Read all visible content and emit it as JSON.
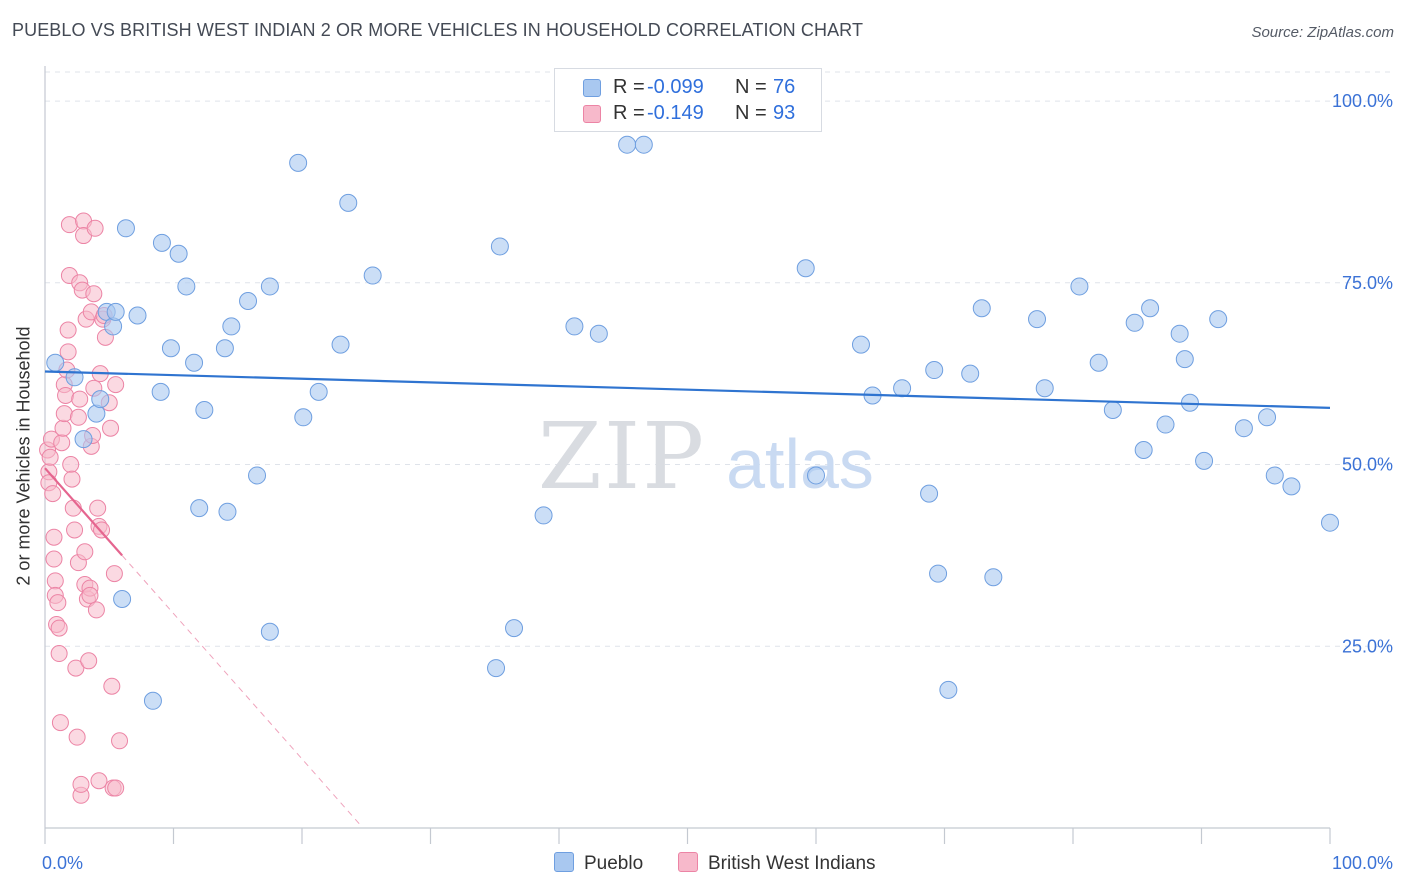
{
  "header": {
    "title": "PUEBLO VS BRITISH WEST INDIAN 2 OR MORE VEHICLES IN HOUSEHOLD CORRELATION CHART",
    "source": "Source: ZipAtlas.com"
  },
  "legend": {
    "series": [
      {
        "r_label": "R =",
        "r_value": "-0.099",
        "n_label": "N =",
        "n_value": "76"
      },
      {
        "r_label": "R =",
        "r_value": "-0.149",
        "n_label": "N =",
        "n_value": "93"
      }
    ]
  },
  "bottom_legend": {
    "pueblo": "Pueblo",
    "bwi": "British West Indians"
  },
  "watermark": {
    "zip": "ZIP",
    "atlas": "atlas"
  },
  "colors": {
    "pueblo_fill": "#a9c8f0",
    "pueblo_stroke": "#6f9fe0",
    "pueblo_line": "#2f74d0",
    "bwi_fill": "#f7b9cb",
    "bwi_stroke": "#ec84a5",
    "bwi_line": "#e5658f",
    "axis_tick_label": "#3b72d6",
    "grid": "#dfe3ea"
  },
  "chart_data": {
    "type": "scatter",
    "title": "PUEBLO VS BRITISH WEST INDIAN 2 OR MORE VEHICLES IN HOUSEHOLD CORRELATION CHART",
    "xlabel": "",
    "ylabel": "2 or more Vehicles in Household",
    "xlim": [
      0,
      100
    ],
    "ylim": [
      0,
      104
    ],
    "x_tick_labels": [
      "0.0%",
      "100.0%"
    ],
    "y_ticks": [
      25,
      50,
      75,
      100
    ],
    "y_tick_labels": [
      "25.0%",
      "50.0%",
      "75.0%",
      "100.0%"
    ],
    "grid": true,
    "series": [
      {
        "name": "Pueblo",
        "points": [
          [
            0.8,
            64
          ],
          [
            2.3,
            62
          ],
          [
            3.0,
            53.5
          ],
          [
            4.0,
            57
          ],
          [
            4.3,
            59
          ],
          [
            4.8,
            71
          ],
          [
            5.3,
            69
          ],
          [
            5.5,
            71
          ],
          [
            6.0,
            31.5
          ],
          [
            6.3,
            82.5
          ],
          [
            7.2,
            70.5
          ],
          [
            8.4,
            17.5
          ],
          [
            9.0,
            60
          ],
          [
            9.1,
            80.5
          ],
          [
            9.8,
            66
          ],
          [
            10.4,
            79
          ],
          [
            11.0,
            74.5
          ],
          [
            11.6,
            64
          ],
          [
            12.0,
            44
          ],
          [
            12.4,
            57.5
          ],
          [
            14.0,
            66
          ],
          [
            14.2,
            43.5
          ],
          [
            14.5,
            69
          ],
          [
            15.8,
            72.5
          ],
          [
            16.5,
            48.5
          ],
          [
            17.5,
            27
          ],
          [
            17.5,
            74.5
          ],
          [
            19.7,
            91.5
          ],
          [
            20.1,
            56.5
          ],
          [
            21.3,
            60
          ],
          [
            23.0,
            66.5
          ],
          [
            23.6,
            86
          ],
          [
            25.5,
            76
          ],
          [
            35.1,
            22
          ],
          [
            35.4,
            80
          ],
          [
            36.5,
            27.5
          ],
          [
            38.8,
            43
          ],
          [
            41.2,
            69
          ],
          [
            43.1,
            68
          ],
          [
            45.3,
            94
          ],
          [
            46.6,
            94
          ],
          [
            59.2,
            77
          ],
          [
            60.0,
            48.5
          ],
          [
            63.5,
            66.5
          ],
          [
            64.4,
            59.5
          ],
          [
            66.7,
            60.5
          ],
          [
            68.8,
            46
          ],
          [
            69.2,
            63
          ],
          [
            69.5,
            35
          ],
          [
            70.3,
            19
          ],
          [
            72.0,
            62.5
          ],
          [
            72.9,
            71.5
          ],
          [
            73.8,
            34.5
          ],
          [
            77.2,
            70
          ],
          [
            77.8,
            60.5
          ],
          [
            80.5,
            74.5
          ],
          [
            82.0,
            64
          ],
          [
            83.1,
            57.5
          ],
          [
            84.8,
            69.5
          ],
          [
            85.5,
            52
          ],
          [
            86.0,
            71.5
          ],
          [
            87.2,
            55.5
          ],
          [
            88.3,
            68
          ],
          [
            88.7,
            64.5
          ],
          [
            89.1,
            58.5
          ],
          [
            90.2,
            50.5
          ],
          [
            91.3,
            70
          ],
          [
            93.3,
            55
          ],
          [
            95.1,
            56.5
          ],
          [
            95.7,
            48.5
          ],
          [
            97.0,
            47
          ],
          [
            100,
            42
          ]
        ]
      },
      {
        "name": "British West Indians",
        "points": [
          [
            0.2,
            52
          ],
          [
            0.3,
            49
          ],
          [
            0.3,
            47.5
          ],
          [
            0.4,
            51
          ],
          [
            0.5,
            53.5
          ],
          [
            0.6,
            46
          ],
          [
            0.7,
            40
          ],
          [
            0.7,
            37
          ],
          [
            0.8,
            34
          ],
          [
            0.8,
            32
          ],
          [
            0.9,
            28
          ],
          [
            1.0,
            31
          ],
          [
            1.1,
            24
          ],
          [
            1.1,
            27.5
          ],
          [
            1.2,
            14.5
          ],
          [
            1.3,
            53
          ],
          [
            1.4,
            55
          ],
          [
            1.5,
            57
          ],
          [
            1.5,
            61
          ],
          [
            1.6,
            59.5
          ],
          [
            1.7,
            63
          ],
          [
            1.8,
            65.5
          ],
          [
            1.8,
            68.5
          ],
          [
            1.9,
            76
          ],
          [
            1.9,
            83
          ],
          [
            2.0,
            50
          ],
          [
            2.1,
            48
          ],
          [
            2.2,
            44
          ],
          [
            2.3,
            41
          ],
          [
            2.4,
            22
          ],
          [
            2.5,
            12.5
          ],
          [
            2.6,
            36.5
          ],
          [
            2.6,
            56.5
          ],
          [
            2.7,
            59
          ],
          [
            2.7,
            75
          ],
          [
            2.8,
            4.5
          ],
          [
            2.8,
            6
          ],
          [
            2.9,
            74
          ],
          [
            3.0,
            83.5
          ],
          [
            3.0,
            81.5
          ],
          [
            3.1,
            38
          ],
          [
            3.1,
            33.5
          ],
          [
            3.2,
            70
          ],
          [
            3.3,
            31.5
          ],
          [
            3.4,
            23
          ],
          [
            3.5,
            33
          ],
          [
            3.5,
            32
          ],
          [
            3.6,
            71
          ],
          [
            3.6,
            52.5
          ],
          [
            3.7,
            54
          ],
          [
            3.8,
            60.5
          ],
          [
            3.8,
            73.5
          ],
          [
            3.9,
            82.5
          ],
          [
            4.0,
            30
          ],
          [
            4.1,
            44
          ],
          [
            4.2,
            6.5
          ],
          [
            4.2,
            41.5
          ],
          [
            4.3,
            62.5
          ],
          [
            4.4,
            41
          ],
          [
            4.5,
            70
          ],
          [
            4.6,
            70.5
          ],
          [
            4.7,
            67.5
          ],
          [
            5.0,
            58.5
          ],
          [
            5.1,
            55
          ],
          [
            5.2,
            19.5
          ],
          [
            5.3,
            5.5
          ],
          [
            5.4,
            35
          ],
          [
            5.5,
            61
          ],
          [
            5.5,
            5.5
          ],
          [
            5.8,
            12
          ]
        ]
      }
    ],
    "trend_lines": [
      {
        "series": "Pueblo",
        "from": [
          0,
          62.8
        ],
        "to": [
          100,
          57.8
        ],
        "style": "solid"
      },
      {
        "series": "British West Indians",
        "from": [
          0,
          49.5
        ],
        "to": [
          6,
          37.5
        ],
        "style": "solid"
      },
      {
        "series": "British West Indians",
        "from": [
          6,
          37.5
        ],
        "to": [
          24.5,
          0.5
        ],
        "style": "dashed"
      }
    ]
  }
}
